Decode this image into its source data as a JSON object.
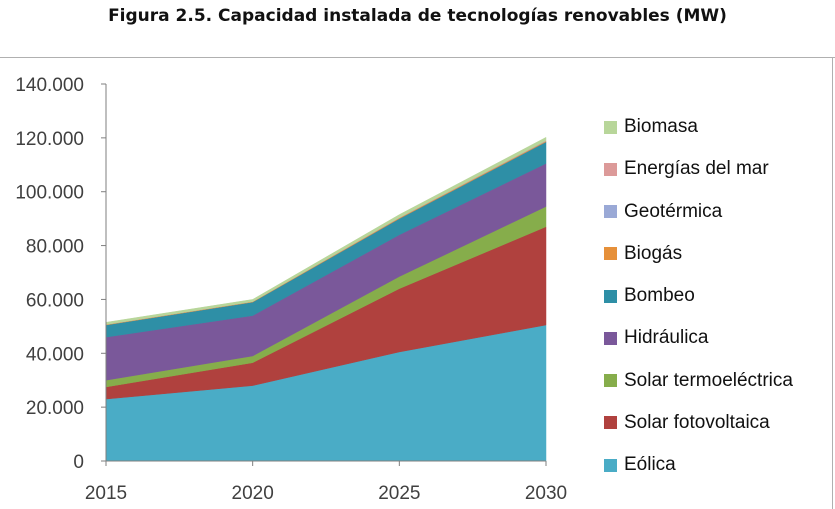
{
  "chart_data": {
    "type": "area",
    "stacked": true,
    "title": "Figura 2.5. Capacidad instalada de tecnologías renovables (MW)",
    "xlabel": "",
    "ylabel": "",
    "x": [
      "2015",
      "2020",
      "2025",
      "2030"
    ],
    "ylim": [
      0,
      140000
    ],
    "ytick_labels": [
      "0",
      "20.000",
      "40.000",
      "60.000",
      "80.000",
      "100.000",
      "120.000",
      "140.000"
    ],
    "legend_position": "right",
    "series": [
      {
        "name": "Eólica",
        "color": "#4aacc6",
        "values": [
          23000,
          28000,
          40500,
          50500
        ]
      },
      {
        "name": "Solar fotovoltaica",
        "color": "#b0413e",
        "values": [
          4500,
          8500,
          23500,
          36500
        ]
      },
      {
        "name": "Solar termoeléctrica",
        "color": "#86ad4b",
        "values": [
          2500,
          2500,
          4500,
          7500
        ]
      },
      {
        "name": "Hidráulica",
        "color": "#7a589a",
        "values": [
          16000,
          15000,
          15500,
          16000
        ]
      },
      {
        "name": "Bombeo",
        "color": "#2e8fa6",
        "values": [
          4500,
          5000,
          6000,
          8000
        ]
      },
      {
        "name": "Biogás",
        "color": "#e6903a",
        "values": [
          200,
          200,
          300,
          300
        ]
      },
      {
        "name": "Geotérmica",
        "color": "#9aa9d6",
        "values": [
          0,
          0,
          0,
          100
        ]
      },
      {
        "name": "Energías del mar",
        "color": "#dc9a99",
        "values": [
          0,
          0,
          100,
          100
        ]
      },
      {
        "name": "Biomasa",
        "color": "#b8d69a",
        "values": [
          800,
          800,
          1100,
          1200
        ]
      }
    ]
  }
}
